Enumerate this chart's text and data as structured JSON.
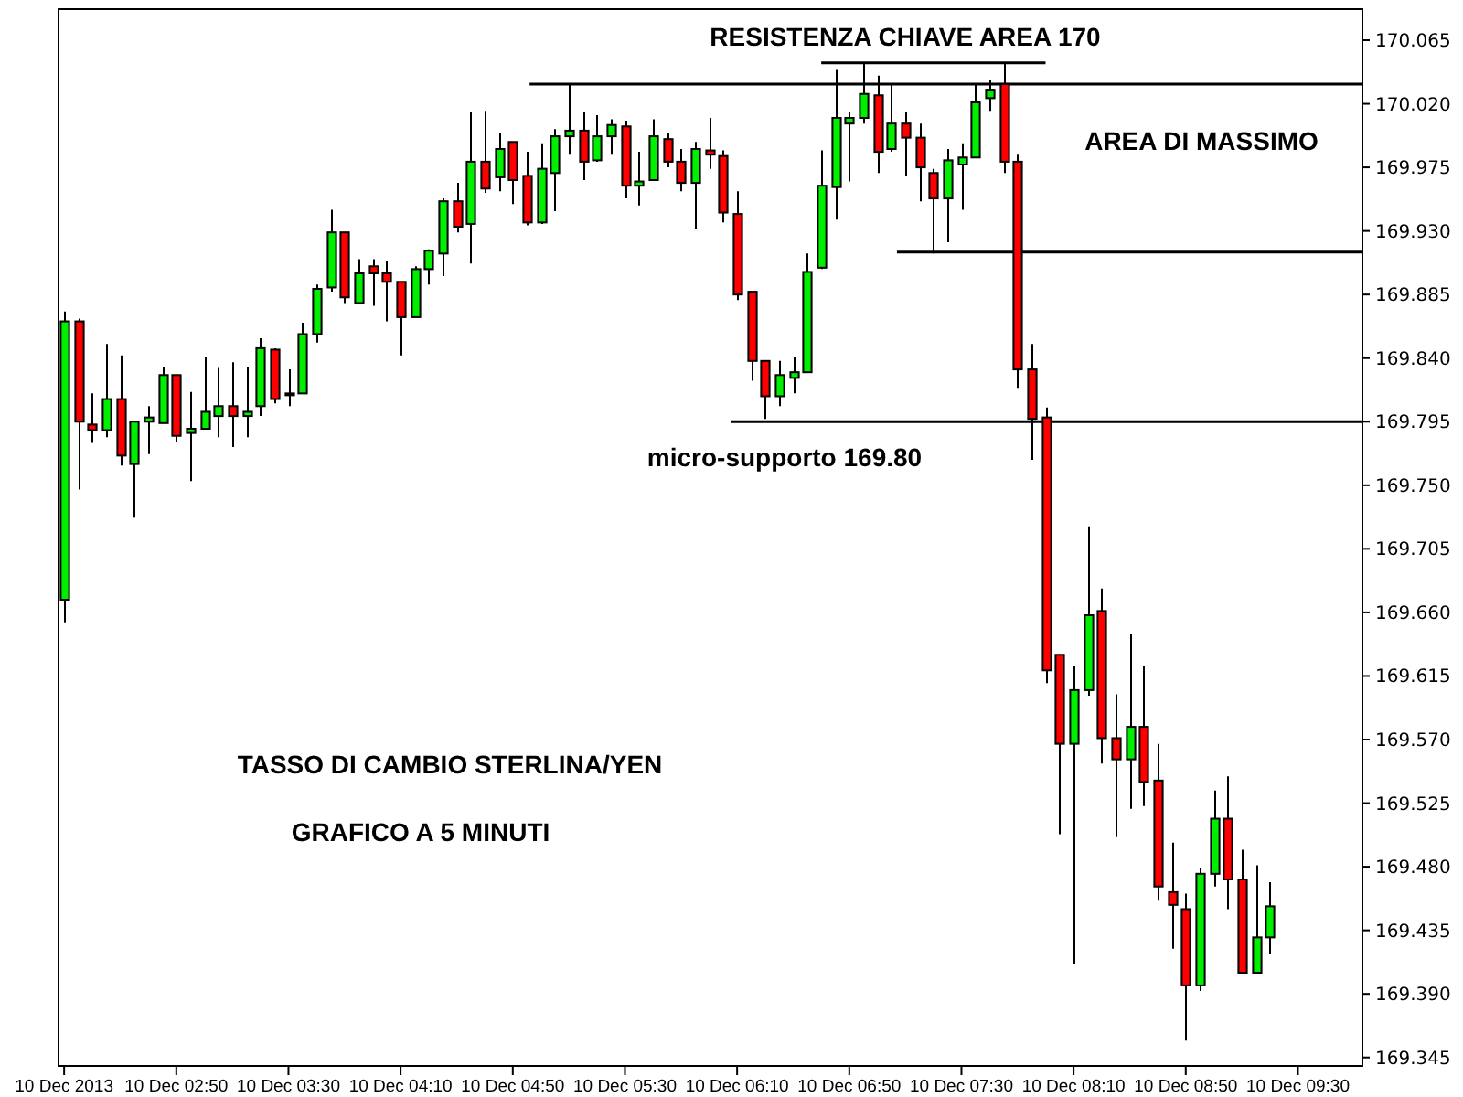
{
  "chart_data": {
    "type": "candlestick",
    "x": [
      "2013-12-10T02:10",
      "2013-12-10T02:15",
      "2013-12-10T02:20",
      "2013-12-10T02:25",
      "2013-12-10T02:30",
      "2013-12-10T02:35",
      "2013-12-10T02:40",
      "2013-12-10T02:45",
      "2013-12-10T02:50",
      "2013-12-10T02:55",
      "2013-12-10T03:00",
      "2013-12-10T03:05",
      "2013-12-10T03:10",
      "2013-12-10T03:15",
      "2013-12-10T03:20",
      "2013-12-10T03:25",
      "2013-12-10T03:30",
      "2013-12-10T03:35",
      "2013-12-10T03:40",
      "2013-12-10T03:45",
      "2013-12-10T03:50",
      "2013-12-10T03:55",
      "2013-12-10T04:00",
      "2013-12-10T04:05",
      "2013-12-10T04:10",
      "2013-12-10T04:15",
      "2013-12-10T04:20",
      "2013-12-10T04:25",
      "2013-12-10T04:30",
      "2013-12-10T04:35",
      "2013-12-10T04:40",
      "2013-12-10T04:45",
      "2013-12-10T04:50",
      "2013-12-10T04:55",
      "2013-12-10T05:00",
      "2013-12-10T05:05",
      "2013-12-10T05:10",
      "2013-12-10T05:15",
      "2013-12-10T05:20",
      "2013-12-10T05:25",
      "2013-12-10T05:30",
      "2013-12-10T05:35",
      "2013-12-10T05:40",
      "2013-12-10T05:45",
      "2013-12-10T05:50",
      "2013-12-10T05:55",
      "2013-12-10T06:00",
      "2013-12-10T06:05",
      "2013-12-10T06:10",
      "2013-12-10T06:15",
      "2013-12-10T06:20",
      "2013-12-10T06:25",
      "2013-12-10T06:30",
      "2013-12-10T06:35",
      "2013-12-10T06:40",
      "2013-12-10T06:45",
      "2013-12-10T06:50",
      "2013-12-10T06:55",
      "2013-12-10T07:00",
      "2013-12-10T07:05",
      "2013-12-10T07:10",
      "2013-12-10T07:15",
      "2013-12-10T07:20",
      "2013-12-10T07:25",
      "2013-12-10T07:30",
      "2013-12-10T07:35",
      "2013-12-10T07:40",
      "2013-12-10T07:45",
      "2013-12-10T07:50",
      "2013-12-10T07:55",
      "2013-12-10T08:00",
      "2013-12-10T08:05",
      "2013-12-10T08:10",
      "2013-12-10T08:15",
      "2013-12-10T08:20",
      "2013-12-10T08:25",
      "2013-12-10T08:30",
      "2013-12-10T08:35",
      "2013-12-10T08:40",
      "2013-12-10T08:45",
      "2013-12-10T08:50",
      "2013-12-10T08:55",
      "2013-12-10T09:00",
      "2013-12-10T09:05",
      "2013-12-10T09:10",
      "2013-12-10T09:15",
      "2013-12-10T09:20"
    ],
    "ohlc": [
      [
        169.669,
        169.873,
        169.653,
        169.866
      ],
      [
        169.866,
        169.868,
        169.747,
        169.795
      ],
      [
        169.793,
        169.815,
        169.78,
        169.789
      ],
      [
        169.789,
        169.85,
        169.784,
        169.811
      ],
      [
        169.811,
        169.842,
        169.764,
        169.771
      ],
      [
        169.765,
        169.795,
        169.727,
        169.795
      ],
      [
        169.795,
        169.806,
        169.772,
        169.798
      ],
      [
        169.794,
        169.834,
        169.794,
        169.828
      ],
      [
        169.828,
        169.828,
        169.781,
        169.785
      ],
      [
        169.787,
        169.816,
        169.753,
        169.79
      ],
      [
        169.79,
        169.841,
        169.79,
        169.802
      ],
      [
        169.799,
        169.833,
        169.784,
        169.806
      ],
      [
        169.806,
        169.837,
        169.777,
        169.799
      ],
      [
        169.799,
        169.834,
        169.784,
        169.802
      ],
      [
        169.806,
        169.854,
        169.799,
        169.847
      ],
      [
        169.846,
        169.847,
        169.808,
        169.811
      ],
      [
        169.815,
        169.832,
        169.806,
        169.815
      ],
      [
        169.815,
        169.865,
        169.815,
        169.857
      ],
      [
        169.857,
        169.892,
        169.851,
        169.889
      ],
      [
        169.89,
        169.945,
        169.887,
        169.929
      ],
      [
        169.929,
        169.929,
        169.879,
        169.883
      ],
      [
        169.879,
        169.91,
        169.879,
        169.9
      ],
      [
        169.905,
        169.91,
        169.877,
        169.9
      ],
      [
        169.9,
        169.909,
        169.866,
        169.894
      ],
      [
        169.894,
        169.894,
        169.842,
        169.869
      ],
      [
        169.869,
        169.905,
        169.869,
        169.903
      ],
      [
        169.903,
        169.917,
        169.892,
        169.916
      ],
      [
        169.914,
        169.953,
        169.898,
        169.951
      ],
      [
        169.951,
        169.964,
        169.929,
        169.933
      ],
      [
        169.935,
        170.014,
        169.907,
        169.979
      ],
      [
        169.979,
        170.015,
        169.957,
        169.96
      ],
      [
        169.968,
        169.999,
        169.958,
        169.988
      ],
      [
        169.993,
        169.993,
        169.949,
        169.966
      ],
      [
        169.969,
        169.986,
        169.934,
        169.936
      ],
      [
        169.936,
        169.992,
        169.935,
        169.974
      ],
      [
        169.971,
        170.002,
        169.944,
        169.997
      ],
      [
        169.997,
        170.034,
        169.984,
        170.001
      ],
      [
        170.001,
        170.014,
        169.966,
        169.979
      ],
      [
        169.98,
        170.012,
        169.979,
        169.997
      ],
      [
        169.997,
        170.009,
        169.984,
        170.005
      ],
      [
        170.004,
        170.008,
        169.953,
        169.962
      ],
      [
        169.962,
        169.986,
        169.948,
        169.965
      ],
      [
        169.966,
        170.009,
        169.966,
        169.997
      ],
      [
        169.995,
        169.999,
        169.975,
        169.979
      ],
      [
        169.979,
        169.988,
        169.958,
        169.964
      ],
      [
        169.964,
        169.993,
        169.931,
        169.988
      ],
      [
        169.987,
        170.01,
        169.974,
        169.984
      ],
      [
        169.983,
        169.987,
        169.936,
        169.943
      ],
      [
        169.942,
        169.958,
        169.881,
        169.885
      ],
      [
        169.887,
        169.887,
        169.824,
        169.838
      ],
      [
        169.838,
        169.838,
        169.797,
        169.813
      ],
      [
        169.813,
        169.838,
        169.806,
        169.828
      ],
      [
        169.826,
        169.841,
        169.815,
        169.83
      ],
      [
        169.83,
        169.914,
        169.83,
        169.901
      ],
      [
        169.904,
        169.987,
        169.903,
        169.962
      ],
      [
        169.961,
        170.044,
        169.938,
        170.01
      ],
      [
        170.006,
        170.014,
        169.965,
        170.01
      ],
      [
        170.01,
        170.049,
        170.006,
        170.027
      ],
      [
        170.026,
        170.04,
        169.971,
        169.986
      ],
      [
        169.988,
        170.034,
        169.986,
        170.006
      ],
      [
        170.006,
        170.014,
        169.969,
        169.996
      ],
      [
        169.996,
        170.006,
        169.951,
        169.975
      ],
      [
        169.971,
        169.974,
        169.914,
        169.953
      ],
      [
        169.953,
        169.988,
        169.922,
        169.98
      ],
      [
        169.977,
        169.992,
        169.945,
        169.982
      ],
      [
        169.982,
        170.034,
        169.982,
        170.021
      ],
      [
        170.024,
        170.037,
        170.015,
        170.03
      ],
      [
        170.034,
        170.049,
        169.971,
        169.979
      ],
      [
        169.979,
        169.984,
        169.819,
        169.832
      ],
      [
        169.832,
        169.85,
        169.768,
        169.797
      ],
      [
        169.798,
        169.805,
        169.61,
        169.619
      ],
      [
        169.63,
        169.63,
        169.503,
        169.567
      ],
      [
        169.567,
        169.622,
        169.411,
        169.605
      ],
      [
        169.605,
        169.721,
        169.601,
        169.658
      ],
      [
        169.661,
        169.677,
        169.553,
        169.571
      ],
      [
        169.571,
        169.602,
        169.501,
        169.556
      ],
      [
        169.556,
        169.645,
        169.521,
        169.579
      ],
      [
        169.579,
        169.622,
        169.523,
        169.54
      ],
      [
        169.541,
        169.567,
        169.456,
        169.466
      ],
      [
        169.462,
        169.497,
        169.422,
        169.453
      ],
      [
        169.45,
        169.461,
        169.357,
        169.396
      ],
      [
        169.396,
        169.479,
        169.392,
        169.475
      ],
      [
        169.475,
        169.534,
        169.466,
        169.514
      ],
      [
        169.514,
        169.544,
        169.45,
        169.471
      ],
      [
        169.471,
        169.492,
        169.405,
        169.405
      ],
      [
        169.405,
        169.481,
        169.405,
        169.43
      ],
      [
        169.43,
        169.469,
        169.418,
        169.452
      ]
    ],
    "series": [
      {
        "type": "line",
        "x": [
          "2013-12-10T04:56",
          "2013-12-10T09:53"
        ],
        "values": [
          170.034,
          170.034
        ],
        "color": "#000000"
      },
      {
        "type": "line",
        "x": [
          "2013-12-10T06:40",
          "2013-12-10T08:00"
        ],
        "values": [
          170.049,
          170.049
        ],
        "color": "#000000"
      },
      {
        "type": "line",
        "x": [
          "2013-12-10T07:07",
          "2013-12-10T09:53"
        ],
        "values": [
          169.915,
          169.915
        ],
        "color": "#000000"
      },
      {
        "type": "line",
        "x": [
          "2013-12-10T06:08",
          "2013-12-10T09:53"
        ],
        "values": [
          169.795,
          169.795
        ],
        "color": "#000000"
      }
    ],
    "xlim": [
      "2013-12-10T02:08",
      "2013-12-10T09:53"
    ],
    "xticks": [
      {
        "value": "2013-12-10T02:10",
        "label": "10 Dec 2013"
      },
      {
        "value": "2013-12-10T02:50",
        "label": "10 Dec 02:50"
      },
      {
        "value": "2013-12-10T03:30",
        "label": "10 Dec 03:30"
      },
      {
        "value": "2013-12-10T04:10",
        "label": "10 Dec 04:10"
      },
      {
        "value": "2013-12-10T04:50",
        "label": "10 Dec 04:50"
      },
      {
        "value": "2013-12-10T05:30",
        "label": "10 Dec 05:30"
      },
      {
        "value": "2013-12-10T06:10",
        "label": "10 Dec 06:10"
      },
      {
        "value": "2013-12-10T06:50",
        "label": "10 Dec 06:50"
      },
      {
        "value": "2013-12-10T07:30",
        "label": "10 Dec 07:30"
      },
      {
        "value": "2013-12-10T08:10",
        "label": "10 Dec 08:10"
      },
      {
        "value": "2013-12-10T08:50",
        "label": "10 Dec 08:50"
      },
      {
        "value": "2013-12-10T09:30",
        "label": "10 Dec 09:30"
      }
    ],
    "ylim": [
      169.339,
      170.087
    ],
    "yticks": [
      170.065,
      {
        "value": 170.02,
        "label": "170.020"
      },
      169.975,
      {
        "value": 169.93,
        "label": "169.930"
      },
      169.885,
      {
        "value": 169.84,
        "label": "169.840"
      },
      169.795,
      {
        "value": 169.75,
        "label": "169.750"
      },
      169.705,
      {
        "value": 169.66,
        "label": "169.660"
      },
      169.615,
      {
        "value": 169.57,
        "label": "169.570"
      },
      169.525,
      {
        "value": 169.48,
        "label": "169.480"
      },
      169.435,
      {
        "value": 169.39,
        "label": "169.390"
      },
      169.345
    ],
    "annotations": [
      "RESISTENZA CHIAVE AREA 170",
      "AREA DI MASSIMO",
      "micro-supporto 169.80",
      "TASSO DI CAMBIO STERLINA/YEN",
      "GRAFICO A 5 MINUTI"
    ]
  }
}
